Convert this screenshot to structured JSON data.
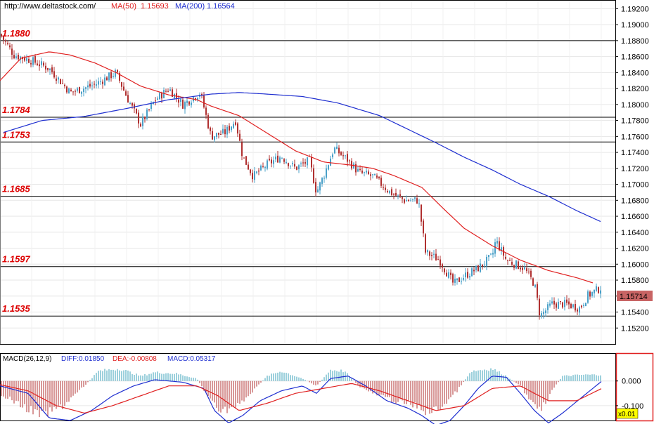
{
  "header": {
    "site": "http://www.deltastock.com/",
    "ma50_label": "MA(50)",
    "ma50_value": "1.15693",
    "ma200_label": "MA(200)",
    "ma200_value": "1.16564"
  },
  "macd_header": {
    "name": "MACD(26,12,9)",
    "diff": "DIFF:0.01850",
    "dea": "DEA:-0.00808",
    "macd": "MACD:0.05317"
  },
  "price_badge": "1.15714",
  "macd_zoom": "x0.01",
  "levels": [
    {
      "label": "1.1880",
      "value": 1.188
    },
    {
      "label": "1.1784",
      "value": 1.1784
    },
    {
      "label": "1.1753",
      "value": 1.1753
    },
    {
      "label": "1.1685",
      "value": 1.1685
    },
    {
      "label": "1.1597",
      "value": 1.1597
    },
    {
      "label": "1.1535",
      "value": 1.1535
    }
  ],
  "colors": {
    "up_candle": "#4aa0c8",
    "down_candle": "#b03030",
    "ma50": "#e02020",
    "ma200": "#1f2fd0",
    "level_label": "#dd0000",
    "diff_line": "#1f2fd0",
    "dea_line": "#e02020",
    "macd_pos": "#3aa0b8",
    "macd_neg": "#b03030"
  },
  "chart_data": {
    "type": "line",
    "ylim": [
      1.15,
      1.193
    ],
    "y_ticks": [
      "1.19200",
      "1.19000",
      "1.18800",
      "1.18600",
      "1.18400",
      "1.18200",
      "1.18000",
      "1.17800",
      "1.17600",
      "1.17400",
      "1.17200",
      "1.17000",
      "1.16800",
      "1.16600",
      "1.16400",
      "1.16200",
      "1.16000",
      "1.15800",
      "1.15600",
      "1.15400",
      "1.15200"
    ],
    "price_anchors": [
      [
        0,
        1.1888
      ],
      [
        20,
        1.1862
      ],
      [
        45,
        1.1855
      ],
      [
        70,
        1.1845
      ],
      [
        100,
        1.1815
      ],
      [
        135,
        1.1825
      ],
      [
        165,
        1.184
      ],
      [
        180,
        1.181
      ],
      [
        200,
        1.1775
      ],
      [
        220,
        1.1805
      ],
      [
        240,
        1.182
      ],
      [
        260,
        1.18
      ],
      [
        285,
        1.1815
      ],
      [
        300,
        1.176
      ],
      [
        320,
        1.1765
      ],
      [
        335,
        1.178
      ],
      [
        345,
        1.1735
      ],
      [
        360,
        1.171
      ],
      [
        380,
        1.1725
      ],
      [
        400,
        1.1735
      ],
      [
        420,
        1.172
      ],
      [
        440,
        1.173
      ],
      [
        450,
        1.169
      ],
      [
        460,
        1.171
      ],
      [
        475,
        1.1745
      ],
      [
        495,
        1.173
      ],
      [
        510,
        1.1715
      ],
      [
        530,
        1.171
      ],
      [
        555,
        1.169
      ],
      [
        575,
        1.168
      ],
      [
        595,
        1.168
      ],
      [
        605,
        1.1615
      ],
      [
        625,
        1.1605
      ],
      [
        645,
        1.1575
      ],
      [
        660,
        1.1585
      ],
      [
        680,
        1.1595
      ],
      [
        700,
        1.161
      ],
      [
        705,
        1.163
      ],
      [
        720,
        1.1605
      ],
      [
        745,
        1.1595
      ],
      [
        760,
        1.1575
      ],
      [
        768,
        1.1535
      ],
      [
        785,
        1.155
      ],
      [
        805,
        1.155
      ],
      [
        825,
        1.1545
      ],
      [
        835,
        1.156
      ],
      [
        855,
        1.1571
      ]
    ],
    "ma50_anchors": [
      [
        0,
        1.183
      ],
      [
        30,
        1.1858
      ],
      [
        70,
        1.1866
      ],
      [
        100,
        1.1862
      ],
      [
        135,
        1.1852
      ],
      [
        165,
        1.184
      ],
      [
        200,
        1.1823
      ],
      [
        240,
        1.1812
      ],
      [
        280,
        1.1806
      ],
      [
        300,
        1.1798
      ],
      [
        340,
        1.1786
      ],
      [
        380,
        1.1764
      ],
      [
        420,
        1.1742
      ],
      [
        460,
        1.1728
      ],
      [
        500,
        1.1724
      ],
      [
        530,
        1.172
      ],
      [
        560,
        1.1711
      ],
      [
        600,
        1.1696
      ],
      [
        630,
        1.167
      ],
      [
        660,
        1.1645
      ],
      [
        700,
        1.1623
      ],
      [
        740,
        1.1605
      ],
      [
        780,
        1.1592
      ],
      [
        820,
        1.1583
      ],
      [
        845,
        1.1576
      ]
    ],
    "ma200_anchors": [
      [
        5,
        1.1765
      ],
      [
        60,
        1.178
      ],
      [
        120,
        1.1785
      ],
      [
        180,
        1.1795
      ],
      [
        240,
        1.1806
      ],
      [
        300,
        1.1813
      ],
      [
        340,
        1.1815
      ],
      [
        380,
        1.1813
      ],
      [
        430,
        1.181
      ],
      [
        480,
        1.1802
      ],
      [
        540,
        1.1786
      ],
      [
        580,
        1.1769
      ],
      [
        620,
        1.1752
      ],
      [
        660,
        1.1734
      ],
      [
        700,
        1.1718
      ],
      [
        740,
        1.17
      ],
      [
        780,
        1.1685
      ],
      [
        820,
        1.1667
      ],
      [
        855,
        1.1653
      ]
    ],
    "macd_ylim": [
      -0.16,
      0.11
    ],
    "macd_ticks": [
      "0.000",
      "-0.100"
    ],
    "macd_hist_anchors": [
      [
        0,
        -0.05
      ],
      [
        30,
        -0.1
      ],
      [
        60,
        -0.14
      ],
      [
        90,
        -0.1
      ],
      [
        120,
        -0.02
      ],
      [
        140,
        0.04
      ],
      [
        170,
        0.05
      ],
      [
        200,
        0.02
      ],
      [
        220,
        0.035
      ],
      [
        250,
        0.03
      ],
      [
        280,
        0.01
      ],
      [
        295,
        -0.06
      ],
      [
        315,
        -0.12
      ],
      [
        340,
        -0.1
      ],
      [
        360,
        -0.04
      ],
      [
        380,
        0.02
      ],
      [
        400,
        0.04
      ],
      [
        430,
        0.01
      ],
      [
        450,
        -0.02
      ],
      [
        470,
        0.045
      ],
      [
        490,
        0.04
      ],
      [
        510,
        -0.02
      ],
      [
        530,
        -0.05
      ],
      [
        560,
        -0.08
      ],
      [
        590,
        -0.1
      ],
      [
        610,
        -0.13
      ],
      [
        630,
        -0.1
      ],
      [
        650,
        -0.04
      ],
      [
        670,
        0.04
      ],
      [
        700,
        0.05
      ],
      [
        720,
        0.02
      ],
      [
        740,
        -0.02
      ],
      [
        755,
        -0.08
      ],
      [
        770,
        -0.11
      ],
      [
        785,
        -0.04
      ],
      [
        800,
        0.02
      ],
      [
        830,
        0.025
      ],
      [
        855,
        0.025
      ]
    ],
    "macd_diff_anchors": [
      [
        0,
        -0.02
      ],
      [
        40,
        -0.05
      ],
      [
        70,
        -0.15
      ],
      [
        100,
        -0.16
      ],
      [
        130,
        -0.12
      ],
      [
        160,
        -0.06
      ],
      [
        190,
        -0.02
      ],
      [
        220,
        0.005
      ],
      [
        260,
        -0.005
      ],
      [
        290,
        -0.03
      ],
      [
        305,
        -0.12
      ],
      [
        325,
        -0.17
      ],
      [
        345,
        -0.14
      ],
      [
        370,
        -0.08
      ],
      [
        400,
        -0.04
      ],
      [
        430,
        -0.02
      ],
      [
        450,
        -0.05
      ],
      [
        470,
        0.01
      ],
      [
        495,
        0.02
      ],
      [
        520,
        -0.02
      ],
      [
        550,
        -0.08
      ],
      [
        580,
        -0.11
      ],
      [
        600,
        -0.14
      ],
      [
        620,
        -0.18
      ],
      [
        640,
        -0.16
      ],
      [
        660,
        -0.1
      ],
      [
        680,
        -0.03
      ],
      [
        700,
        0.02
      ],
      [
        720,
        0.015
      ],
      [
        740,
        -0.05
      ],
      [
        760,
        -0.12
      ],
      [
        780,
        -0.17
      ],
      [
        800,
        -0.13
      ],
      [
        830,
        -0.06
      ],
      [
        856,
        0.0
      ]
    ],
    "macd_dea_anchors": [
      [
        0,
        -0.015
      ],
      [
        40,
        -0.04
      ],
      [
        80,
        -0.1
      ],
      [
        120,
        -0.13
      ],
      [
        160,
        -0.1
      ],
      [
        200,
        -0.06
      ],
      [
        240,
        -0.02
      ],
      [
        280,
        -0.02
      ],
      [
        310,
        -0.06
      ],
      [
        340,
        -0.12
      ],
      [
        380,
        -0.09
      ],
      [
        420,
        -0.05
      ],
      [
        460,
        -0.03
      ],
      [
        500,
        -0.01
      ],
      [
        540,
        -0.04
      ],
      [
        580,
        -0.08
      ],
      [
        620,
        -0.12
      ],
      [
        660,
        -0.1
      ],
      [
        700,
        -0.03
      ],
      [
        740,
        -0.02
      ],
      [
        780,
        -0.08
      ],
      [
        820,
        -0.08
      ],
      [
        856,
        -0.03
      ]
    ]
  }
}
